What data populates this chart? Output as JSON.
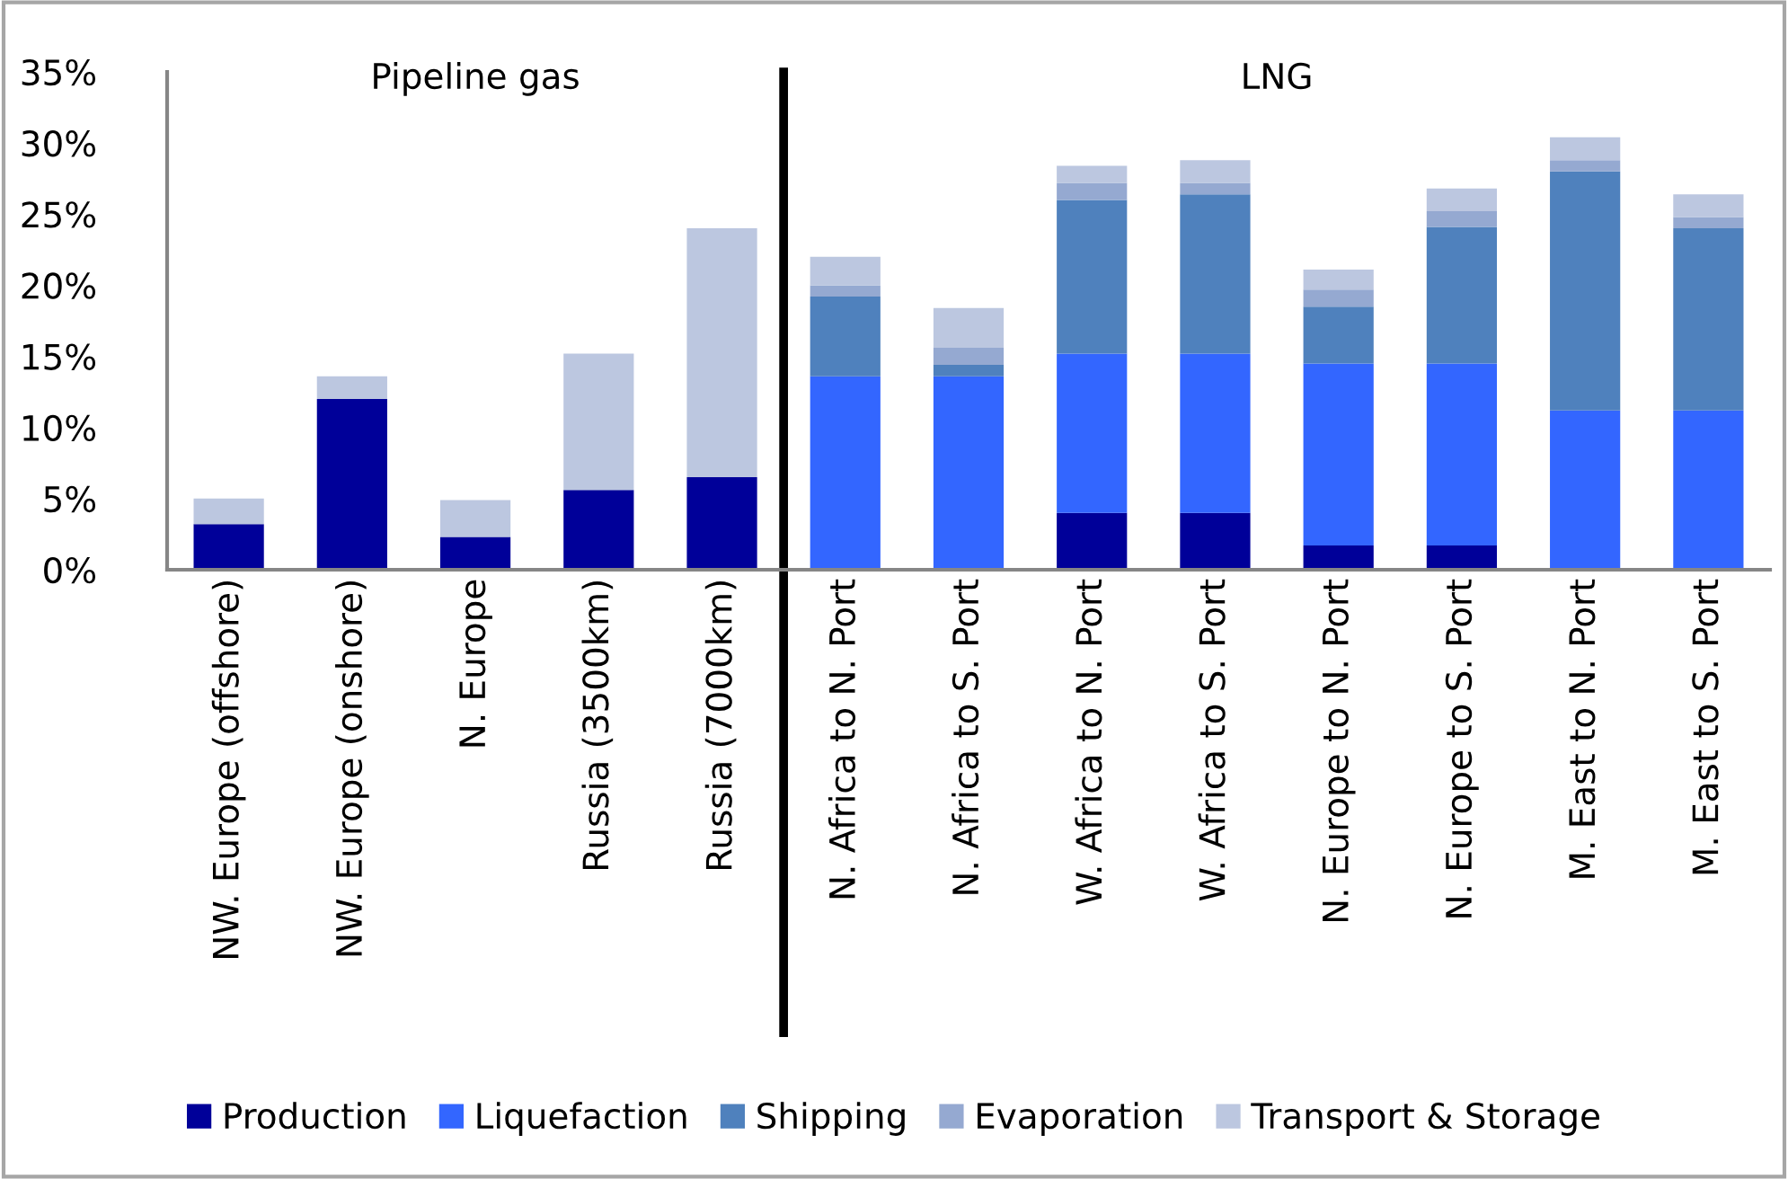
{
  "chart_data": {
    "type": "bar",
    "stacked": true,
    "categories": [
      "NW. Europe (offshore)",
      "NW. Europe (onshore)",
      "N. Europe",
      "Russia (3500km)",
      "Russia (7000km)",
      "N. Africa to N. Port",
      "N. Africa to S. Port",
      "W. Africa to N. Port",
      "W. Africa to S. Port",
      "N. Europe to N. Port",
      "N. Europe to S. Port",
      "M. East to N. Port",
      "M. East to S. Port"
    ],
    "series": [
      {
        "name": "Production",
        "color": "#000099",
        "values": [
          3.2,
          12.0,
          2.3,
          5.6,
          6.5,
          0,
          0,
          4.0,
          4.0,
          1.7,
          1.7,
          0,
          0
        ]
      },
      {
        "name": "Liquefaction",
        "color": "#3366ff",
        "values": [
          0,
          0,
          0,
          0,
          0,
          13.6,
          13.6,
          11.2,
          11.2,
          12.8,
          12.8,
          11.2,
          11.2
        ]
      },
      {
        "name": "Shipping",
        "color": "#4f81bd",
        "values": [
          0,
          0,
          0,
          0,
          0,
          5.6,
          0.8,
          10.8,
          11.2,
          4.0,
          9.6,
          16.8,
          12.8
        ]
      },
      {
        "name": "Evaporation",
        "color": "#95a9d1",
        "values": [
          0,
          0,
          0,
          0,
          0,
          0.8,
          1.2,
          1.2,
          0.8,
          1.2,
          1.1,
          0.8,
          0.8
        ]
      },
      {
        "name": "Transport & Storage",
        "color": "#bcc7e0",
        "values": [
          1.8,
          1.6,
          2.6,
          9.6,
          17.5,
          2.0,
          2.8,
          1.2,
          1.6,
          1.4,
          1.6,
          1.6,
          1.6
        ]
      }
    ],
    "ylim": [
      0,
      35
    ],
    "yticks": [
      {
        "value": 0,
        "label": "0%"
      },
      {
        "value": 5,
        "label": "5%"
      },
      {
        "value": 10,
        "label": "10%"
      },
      {
        "value": 15,
        "label": "15%"
      },
      {
        "value": 20,
        "label": "20%"
      },
      {
        "value": 25,
        "label": "25%"
      },
      {
        "value": 30,
        "label": "30%"
      },
      {
        "value": 35,
        "label": "35%"
      }
    ],
    "annotations": [
      "Pipeline gas",
      "LNG"
    ],
    "legend": "bottom",
    "grid": false
  }
}
